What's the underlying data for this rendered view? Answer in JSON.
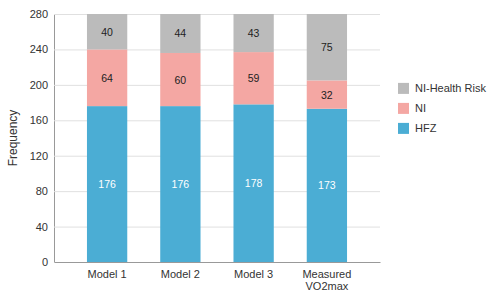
{
  "chart_data": {
    "type": "bar",
    "stacked": true,
    "categories": [
      "Model 1",
      "Model 2",
      "Model 3",
      "Measured\nVO2max"
    ],
    "series": [
      {
        "name": "HFZ",
        "color": "#4BADD4",
        "values": [
          176,
          176,
          178,
          173
        ]
      },
      {
        "name": "NI",
        "color": "#F4A7A3",
        "values": [
          64,
          60,
          59,
          32
        ]
      },
      {
        "name": "NI-Health Risk",
        "color": "#BBBBBB",
        "values": [
          40,
          44,
          43,
          75
        ]
      }
    ],
    "ylabel": "Frequency",
    "ylim": [
      0,
      280
    ],
    "yticks": [
      0,
      40,
      80,
      120,
      160,
      200,
      240,
      280
    ],
    "grid": true,
    "data_labels": true,
    "legend": "right"
  }
}
